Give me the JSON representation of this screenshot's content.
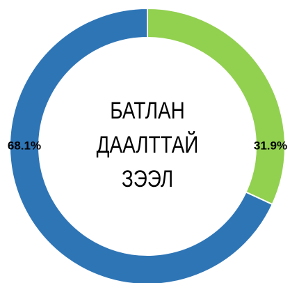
{
  "chart_data": {
    "type": "pie",
    "title": [
      "БАТЛАН",
      "ДААЛТТАЙ",
      "ЗЭЭЛ"
    ],
    "values": [
      31.9,
      68.1
    ],
    "value_labels": [
      "31.9%",
      "68.1%"
    ],
    "colors": [
      "#92d050",
      "#2e75b6"
    ],
    "donut": true
  }
}
